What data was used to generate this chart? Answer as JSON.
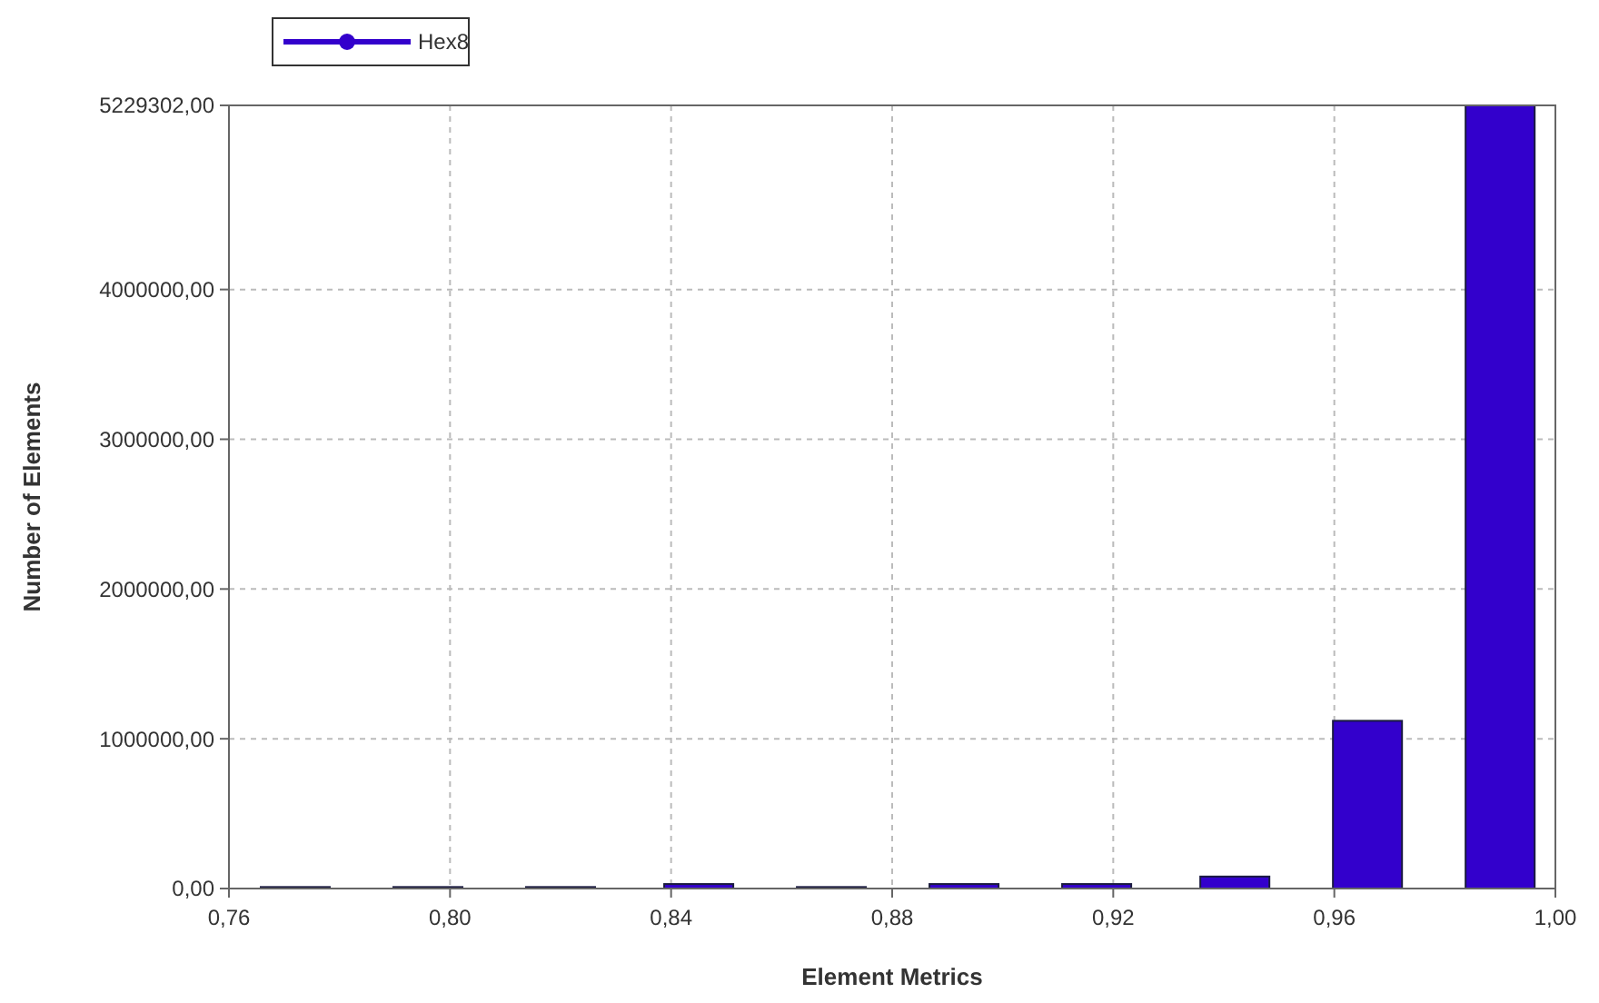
{
  "chart_data": {
    "type": "bar",
    "xlabel": "Element Metrics",
    "ylabel": "Number of Elements",
    "x": [
      0.772,
      0.796,
      0.82,
      0.845,
      0.869,
      0.893,
      0.917,
      0.942,
      0.966,
      0.99
    ],
    "series": [
      {
        "name": "Hex8",
        "color": "#3300cc",
        "values": [
          10000,
          10000,
          10000,
          30000,
          10000,
          30000,
          30000,
          80000,
          1120000,
          5229302
        ]
      }
    ],
    "xlim": [
      0.76,
      1.0
    ],
    "xticks": [
      {
        "value": 0.76,
        "label": "0,76"
      },
      {
        "value": 0.8,
        "label": "0,80"
      },
      {
        "value": 0.84,
        "label": "0,84"
      },
      {
        "value": 0.88,
        "label": "0,88"
      },
      {
        "value": 0.92,
        "label": "0,92"
      },
      {
        "value": 0.96,
        "label": "0,96"
      },
      {
        "value": 1.0,
        "label": "1,00"
      }
    ],
    "ylim": [
      0,
      5229302
    ],
    "yticks": [
      {
        "value": 0,
        "label": "0,00"
      },
      {
        "value": 1000000,
        "label": "1000000,00"
      },
      {
        "value": 2000000,
        "label": "2000000,00"
      },
      {
        "value": 3000000,
        "label": "3000000,00"
      },
      {
        "value": 4000000,
        "label": "4000000,00"
      },
      {
        "value": 5229302,
        "label": "5229302,00"
      }
    ],
    "grid": true,
    "legend": "top left",
    "marker": "circle"
  }
}
